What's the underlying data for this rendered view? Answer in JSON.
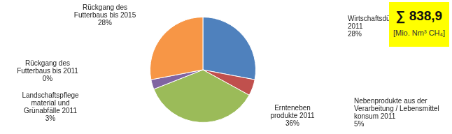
{
  "chart_data": {
    "type": "pie",
    "categories": [
      "Wirtschaftsdünger 2011",
      "Nebenprodukte aus der Verarbeitung / Lebensmittel konsum 2011",
      "Ernteneben produkte 2011",
      "Landschaftspflege material und Grünabfälle 2011",
      "Rückgang des Futterbaus bis 2011",
      "Rückgang des Futterbaus bis 2015"
    ],
    "values": [
      28,
      5,
      36,
      3,
      0,
      28
    ],
    "value_labels": [
      "28%",
      "5%",
      "36%",
      "3%",
      "0%",
      "28%"
    ],
    "colors": [
      "#4f81bd",
      "#c0504d",
      "#9bbb59",
      "#8064a2",
      "#4bacc6",
      "#f79646"
    ],
    "data_labels": true,
    "annotations": [
      "∑ 838,9",
      "[Mio. Nm³ CH₄]"
    ]
  }
}
